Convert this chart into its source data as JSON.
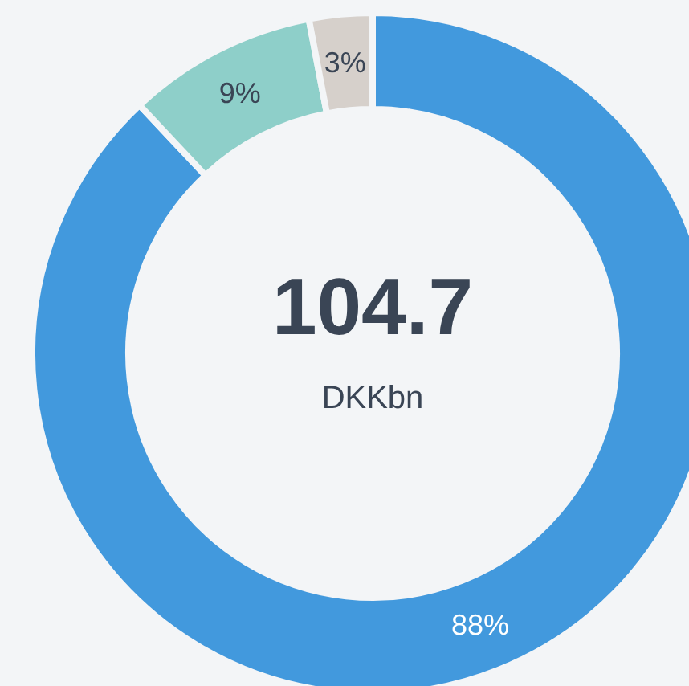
{
  "chart_data": {
    "type": "donut",
    "title": "104.7",
    "subtitle": "DKKbn",
    "categories": [
      null,
      null,
      null
    ],
    "values": [
      88,
      9,
      3
    ],
    "colors": [
      "#4299dd",
      "#8ecfc9",
      "#d6d0cb"
    ],
    "value_labels": [
      "88%",
      "9%",
      "3%"
    ],
    "legend": false
  }
}
